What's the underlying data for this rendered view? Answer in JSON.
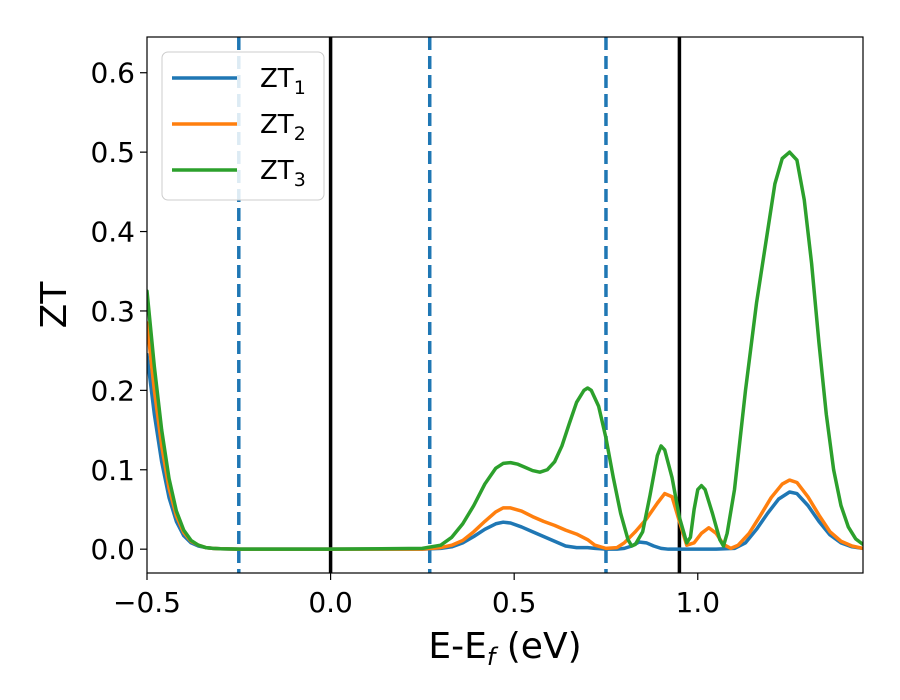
{
  "chart_data": {
    "type": "line",
    "xlabel": {
      "main": "E-E",
      "sub": "f",
      "unit": " (eV)"
    },
    "ylabel": "ZT",
    "xlim": [
      -0.5,
      1.45
    ],
    "ylim": [
      -0.03,
      0.645
    ],
    "xticks": [
      {
        "value": -0.5,
        "label": "−0.5"
      },
      {
        "value": 0.0,
        "label": "0.0"
      },
      {
        "value": 0.5,
        "label": "0.5"
      },
      {
        "value": 1.0,
        "label": "1.0"
      }
    ],
    "yticks": [
      {
        "value": 0.0,
        "label": "0.0"
      },
      {
        "value": 0.1,
        "label": "0.1"
      },
      {
        "value": 0.2,
        "label": "0.2"
      },
      {
        "value": 0.3,
        "label": "0.3"
      },
      {
        "value": 0.4,
        "label": "0.4"
      },
      {
        "value": 0.5,
        "label": "0.5"
      },
      {
        "value": 0.6,
        "label": "0.6"
      }
    ],
    "grid": false,
    "legend_position": "upper-left",
    "vlines": [
      {
        "x": -0.25,
        "style": "dashed",
        "color": "#1f77b4"
      },
      {
        "x": 0.0,
        "style": "solid",
        "color": "#000000"
      },
      {
        "x": 0.27,
        "style": "dashed",
        "color": "#1f77b4"
      },
      {
        "x": 0.75,
        "style": "dashed",
        "color": "#1f77b4"
      },
      {
        "x": 0.95,
        "style": "solid",
        "color": "#000000"
      }
    ],
    "series": [
      {
        "name": "ZT",
        "sub": "1",
        "color": "#1f77b4",
        "points": [
          [
            -0.5,
            0.245
          ],
          [
            -0.48,
            0.17
          ],
          [
            -0.46,
            0.11
          ],
          [
            -0.44,
            0.065
          ],
          [
            -0.42,
            0.035
          ],
          [
            -0.4,
            0.017
          ],
          [
            -0.38,
            0.008
          ],
          [
            -0.36,
            0.004
          ],
          [
            -0.34,
            0.002
          ],
          [
            -0.32,
            0.001
          ],
          [
            -0.3,
            0.0005
          ],
          [
            -0.25,
            0.0
          ],
          [
            0.0,
            0.0
          ],
          [
            0.25,
            0.0
          ],
          [
            0.3,
            0.001
          ],
          [
            0.33,
            0.003
          ],
          [
            0.36,
            0.008
          ],
          [
            0.39,
            0.016
          ],
          [
            0.42,
            0.025
          ],
          [
            0.45,
            0.032
          ],
          [
            0.47,
            0.034
          ],
          [
            0.49,
            0.033
          ],
          [
            0.52,
            0.028
          ],
          [
            0.55,
            0.022
          ],
          [
            0.58,
            0.016
          ],
          [
            0.61,
            0.01
          ],
          [
            0.64,
            0.004
          ],
          [
            0.67,
            0.002
          ],
          [
            0.7,
            0.002
          ],
          [
            0.72,
            0.001
          ],
          [
            0.75,
            0.0
          ],
          [
            0.78,
            0.0
          ],
          [
            0.8,
            0.001
          ],
          [
            0.82,
            0.004
          ],
          [
            0.84,
            0.009
          ],
          [
            0.86,
            0.008
          ],
          [
            0.88,
            0.004
          ],
          [
            0.9,
            0.001
          ],
          [
            0.92,
            0.0
          ],
          [
            1.0,
            0.0
          ],
          [
            1.05,
            0.0
          ],
          [
            1.1,
            0.001
          ],
          [
            1.13,
            0.008
          ],
          [
            1.16,
            0.025
          ],
          [
            1.19,
            0.045
          ],
          [
            1.22,
            0.063
          ],
          [
            1.25,
            0.072
          ],
          [
            1.27,
            0.07
          ],
          [
            1.3,
            0.055
          ],
          [
            1.33,
            0.035
          ],
          [
            1.36,
            0.018
          ],
          [
            1.39,
            0.008
          ],
          [
            1.42,
            0.003
          ],
          [
            1.45,
            0.001
          ]
        ]
      },
      {
        "name": "ZT",
        "sub": "2",
        "color": "#ff7f0e",
        "points": [
          [
            -0.5,
            0.285
          ],
          [
            -0.48,
            0.2
          ],
          [
            -0.46,
            0.13
          ],
          [
            -0.44,
            0.077
          ],
          [
            -0.42,
            0.042
          ],
          [
            -0.4,
            0.021
          ],
          [
            -0.38,
            0.01
          ],
          [
            -0.36,
            0.005
          ],
          [
            -0.34,
            0.002
          ],
          [
            -0.32,
            0.001
          ],
          [
            -0.3,
            0.0005
          ],
          [
            -0.25,
            0.0
          ],
          [
            0.0,
            0.0
          ],
          [
            0.25,
            0.0
          ],
          [
            0.3,
            0.002
          ],
          [
            0.33,
            0.005
          ],
          [
            0.36,
            0.011
          ],
          [
            0.39,
            0.022
          ],
          [
            0.42,
            0.035
          ],
          [
            0.45,
            0.047
          ],
          [
            0.47,
            0.052
          ],
          [
            0.49,
            0.052
          ],
          [
            0.52,
            0.048
          ],
          [
            0.55,
            0.041
          ],
          [
            0.58,
            0.035
          ],
          [
            0.61,
            0.03
          ],
          [
            0.64,
            0.024
          ],
          [
            0.67,
            0.019
          ],
          [
            0.7,
            0.012
          ],
          [
            0.72,
            0.005
          ],
          [
            0.75,
            0.001
          ],
          [
            0.78,
            0.002
          ],
          [
            0.8,
            0.008
          ],
          [
            0.83,
            0.022
          ],
          [
            0.86,
            0.038
          ],
          [
            0.89,
            0.058
          ],
          [
            0.91,
            0.07
          ],
          [
            0.93,
            0.066
          ],
          [
            0.95,
            0.035
          ],
          [
            0.97,
            0.005
          ],
          [
            0.99,
            0.008
          ],
          [
            1.01,
            0.02
          ],
          [
            1.03,
            0.027
          ],
          [
            1.05,
            0.02
          ],
          [
            1.07,
            0.006
          ],
          [
            1.09,
            0.001
          ],
          [
            1.11,
            0.005
          ],
          [
            1.14,
            0.02
          ],
          [
            1.17,
            0.042
          ],
          [
            1.2,
            0.065
          ],
          [
            1.23,
            0.082
          ],
          [
            1.25,
            0.087
          ],
          [
            1.27,
            0.084
          ],
          [
            1.3,
            0.066
          ],
          [
            1.33,
            0.043
          ],
          [
            1.36,
            0.022
          ],
          [
            1.39,
            0.01
          ],
          [
            1.42,
            0.004
          ],
          [
            1.45,
            0.001
          ]
        ]
      },
      {
        "name": "ZT",
        "sub": "3",
        "color": "#2ca02c",
        "points": [
          [
            -0.5,
            0.325
          ],
          [
            -0.48,
            0.23
          ],
          [
            -0.46,
            0.15
          ],
          [
            -0.44,
            0.089
          ],
          [
            -0.42,
            0.048
          ],
          [
            -0.4,
            0.024
          ],
          [
            -0.38,
            0.011
          ],
          [
            -0.36,
            0.005
          ],
          [
            -0.34,
            0.002
          ],
          [
            -0.32,
            0.001
          ],
          [
            -0.3,
            0.0005
          ],
          [
            -0.25,
            0.0
          ],
          [
            0.0,
            0.0
          ],
          [
            0.25,
            0.001
          ],
          [
            0.3,
            0.005
          ],
          [
            0.33,
            0.015
          ],
          [
            0.36,
            0.032
          ],
          [
            0.39,
            0.055
          ],
          [
            0.42,
            0.082
          ],
          [
            0.45,
            0.102
          ],
          [
            0.47,
            0.108
          ],
          [
            0.49,
            0.109
          ],
          [
            0.51,
            0.107
          ],
          [
            0.53,
            0.103
          ],
          [
            0.55,
            0.099
          ],
          [
            0.57,
            0.097
          ],
          [
            0.59,
            0.1
          ],
          [
            0.61,
            0.11
          ],
          [
            0.63,
            0.13
          ],
          [
            0.65,
            0.158
          ],
          [
            0.67,
            0.185
          ],
          [
            0.69,
            0.2
          ],
          [
            0.7,
            0.203
          ],
          [
            0.71,
            0.2
          ],
          [
            0.73,
            0.18
          ],
          [
            0.75,
            0.14
          ],
          [
            0.77,
            0.09
          ],
          [
            0.79,
            0.045
          ],
          [
            0.81,
            0.012
          ],
          [
            0.82,
            0.004
          ],
          [
            0.83,
            0.006
          ],
          [
            0.85,
            0.022
          ],
          [
            0.87,
            0.068
          ],
          [
            0.89,
            0.118
          ],
          [
            0.9,
            0.13
          ],
          [
            0.91,
            0.125
          ],
          [
            0.93,
            0.09
          ],
          [
            0.95,
            0.04
          ],
          [
            0.97,
            0.008
          ],
          [
            0.98,
            0.015
          ],
          [
            0.99,
            0.05
          ],
          [
            1.0,
            0.075
          ],
          [
            1.01,
            0.08
          ],
          [
            1.02,
            0.075
          ],
          [
            1.04,
            0.045
          ],
          [
            1.06,
            0.012
          ],
          [
            1.07,
            0.004
          ],
          [
            1.08,
            0.02
          ],
          [
            1.1,
            0.075
          ],
          [
            1.13,
            0.2
          ],
          [
            1.16,
            0.31
          ],
          [
            1.19,
            0.4
          ],
          [
            1.21,
            0.46
          ],
          [
            1.23,
            0.492
          ],
          [
            1.25,
            0.5
          ],
          [
            1.27,
            0.49
          ],
          [
            1.29,
            0.44
          ],
          [
            1.31,
            0.36
          ],
          [
            1.33,
            0.26
          ],
          [
            1.35,
            0.17
          ],
          [
            1.37,
            0.1
          ],
          [
            1.39,
            0.055
          ],
          [
            1.41,
            0.028
          ],
          [
            1.43,
            0.013
          ],
          [
            1.45,
            0.006
          ]
        ]
      }
    ]
  }
}
